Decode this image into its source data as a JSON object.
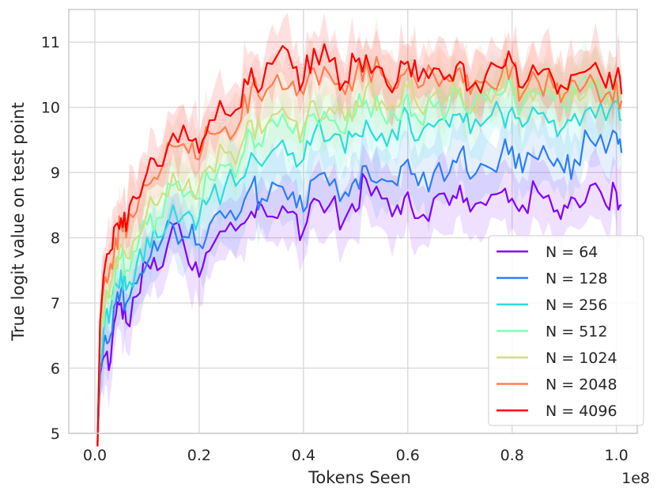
{
  "chart_data": {
    "type": "line",
    "title": "",
    "xlabel": "Tokens Seen",
    "ylabel": "True logit value on test point",
    "x_offset_label": "1e8",
    "xlim": [
      -0.05,
      1.04
    ],
    "ylim": [
      5,
      11.5
    ],
    "xticks": [
      0.0,
      0.2,
      0.4,
      0.6,
      0.8,
      1.0
    ],
    "xtick_labels": [
      "0.0",
      "0.2",
      "0.4",
      "0.6",
      "0.8",
      "1.0"
    ],
    "yticks": [
      5,
      6,
      7,
      8,
      9,
      10,
      11
    ],
    "ytick_labels": [
      "5",
      "6",
      "7",
      "8",
      "9",
      "10",
      "11"
    ],
    "grid": true,
    "legend_position": "lower-right",
    "x": [
      0.005,
      0.01,
      0.02,
      0.03,
      0.04,
      0.05,
      0.06,
      0.08,
      0.1,
      0.12,
      0.15,
      0.18,
      0.2,
      0.22,
      0.25,
      0.28,
      0.3,
      0.32,
      0.35,
      0.38,
      0.4,
      0.42,
      0.45,
      0.48,
      0.5,
      0.52,
      0.55,
      0.58,
      0.6,
      0.62,
      0.65,
      0.68,
      0.7,
      0.72,
      0.75,
      0.78,
      0.8,
      0.82,
      0.85,
      0.88,
      0.9,
      0.92,
      0.95,
      0.98,
      1.0,
      1.01
    ],
    "series": [
      {
        "name": "N = 64",
        "color": "#8000ff",
        "values": [
          4.8,
          5.9,
          6.2,
          6.1,
          6.8,
          7.0,
          6.7,
          7.1,
          7.6,
          7.5,
          8.2,
          7.6,
          7.4,
          7.8,
          8.1,
          8.2,
          8.4,
          8.5,
          8.3,
          8.4,
          8.1,
          8.6,
          8.5,
          8.3,
          8.4,
          8.9,
          8.6,
          8.5,
          8.7,
          8.3,
          8.6,
          8.5,
          8.8,
          8.4,
          8.5,
          8.7,
          8.6,
          8.5,
          8.7,
          8.4,
          8.5,
          8.6,
          8.8,
          8.5,
          8.7,
          8.5
        ]
      },
      {
        "name": "N = 128",
        "color": "#2c7ef7",
        "values": [
          4.8,
          6.0,
          6.5,
          6.5,
          7.0,
          7.2,
          7.0,
          7.3,
          7.6,
          7.8,
          8.2,
          8.0,
          7.9,
          8.2,
          8.3,
          8.4,
          8.8,
          8.6,
          8.8,
          8.7,
          8.4,
          8.9,
          8.8,
          8.7,
          8.9,
          9.1,
          8.9,
          8.8,
          9.2,
          8.8,
          9.0,
          9.0,
          9.3,
          8.9,
          9.1,
          9.3,
          9.4,
          9.0,
          9.2,
          9.1,
          9.0,
          9.2,
          9.5,
          9.3,
          9.6,
          9.3
        ]
      },
      {
        "name": "N = 256",
        "color": "#2adddd",
        "values": [
          4.8,
          6.2,
          6.8,
          6.9,
          7.3,
          7.5,
          7.2,
          7.6,
          8.0,
          8.0,
          8.5,
          8.4,
          8.3,
          8.6,
          8.8,
          8.9,
          9.3,
          9.1,
          9.4,
          9.3,
          9.2,
          9.6,
          9.5,
          9.3,
          9.6,
          9.8,
          9.6,
          9.5,
          9.9,
          9.5,
          9.7,
          9.7,
          9.9,
          9.6,
          9.8,
          9.9,
          10.0,
          9.7,
          9.9,
          9.8,
          9.7,
          9.9,
          10.0,
          9.8,
          10.1,
          9.8
        ]
      },
      {
        "name": "N = 512",
        "color": "#80ffb4",
        "values": [
          4.8,
          6.4,
          7.0,
          7.1,
          7.5,
          7.7,
          7.5,
          7.8,
          8.2,
          8.3,
          8.8,
          8.7,
          8.6,
          8.9,
          9.1,
          9.2,
          9.6,
          9.4,
          9.7,
          9.6,
          9.5,
          9.9,
          9.8,
          9.6,
          9.9,
          10.1,
          9.9,
          9.8,
          10.2,
          9.8,
          10.0,
          10.0,
          10.2,
          9.9,
          10.1,
          10.2,
          10.3,
          10.0,
          10.2,
          10.1,
          10.0,
          10.2,
          10.3,
          10.1,
          10.3,
          10.2
        ]
      },
      {
        "name": "N = 1024",
        "color": "#d4dd80",
        "values": [
          4.8,
          6.5,
          7.2,
          7.3,
          7.7,
          7.9,
          7.7,
          8.0,
          8.4,
          8.5,
          9.0,
          8.9,
          8.8,
          9.1,
          9.3,
          9.4,
          9.8,
          9.6,
          9.9,
          9.8,
          9.7,
          10.1,
          10.0,
          9.8,
          10.1,
          10.3,
          10.1,
          10.0,
          10.3,
          10.0,
          10.2,
          10.2,
          10.3,
          10.0,
          10.2,
          10.3,
          10.4,
          10.1,
          10.3,
          10.2,
          10.1,
          10.3,
          10.4,
          10.2,
          10.4,
          10.2
        ]
      },
      {
        "name": "N = 2048",
        "color": "#ff7f4e",
        "values": [
          4.8,
          6.7,
          7.4,
          7.6,
          8.0,
          8.2,
          8.0,
          8.4,
          8.8,
          8.9,
          9.4,
          9.3,
          9.2,
          9.6,
          9.7,
          9.8,
          10.3,
          10.1,
          10.5,
          10.4,
          10.2,
          10.6,
          10.5,
          10.2,
          10.5,
          10.7,
          10.5,
          10.3,
          10.6,
          10.3,
          10.5,
          10.4,
          10.6,
          10.2,
          10.4,
          10.5,
          10.6,
          10.2,
          10.4,
          10.3,
          10.2,
          10.4,
          10.5,
          10.2,
          10.4,
          10.1
        ]
      },
      {
        "name": "N = 4096",
        "color": "#ff0000",
        "values": [
          4.8,
          6.7,
          7.6,
          7.8,
          8.2,
          8.3,
          8.1,
          8.6,
          9.0,
          9.1,
          9.6,
          9.5,
          9.3,
          9.8,
          9.9,
          10.0,
          10.6,
          10.3,
          10.8,
          10.6,
          10.4,
          10.9,
          10.7,
          10.4,
          10.7,
          10.8,
          10.6,
          10.4,
          10.7,
          10.4,
          10.6,
          10.5,
          10.7,
          10.3,
          10.5,
          10.6,
          10.7,
          10.3,
          10.5,
          10.4,
          10.3,
          10.5,
          10.6,
          10.3,
          10.5,
          10.2
        ]
      }
    ]
  }
}
